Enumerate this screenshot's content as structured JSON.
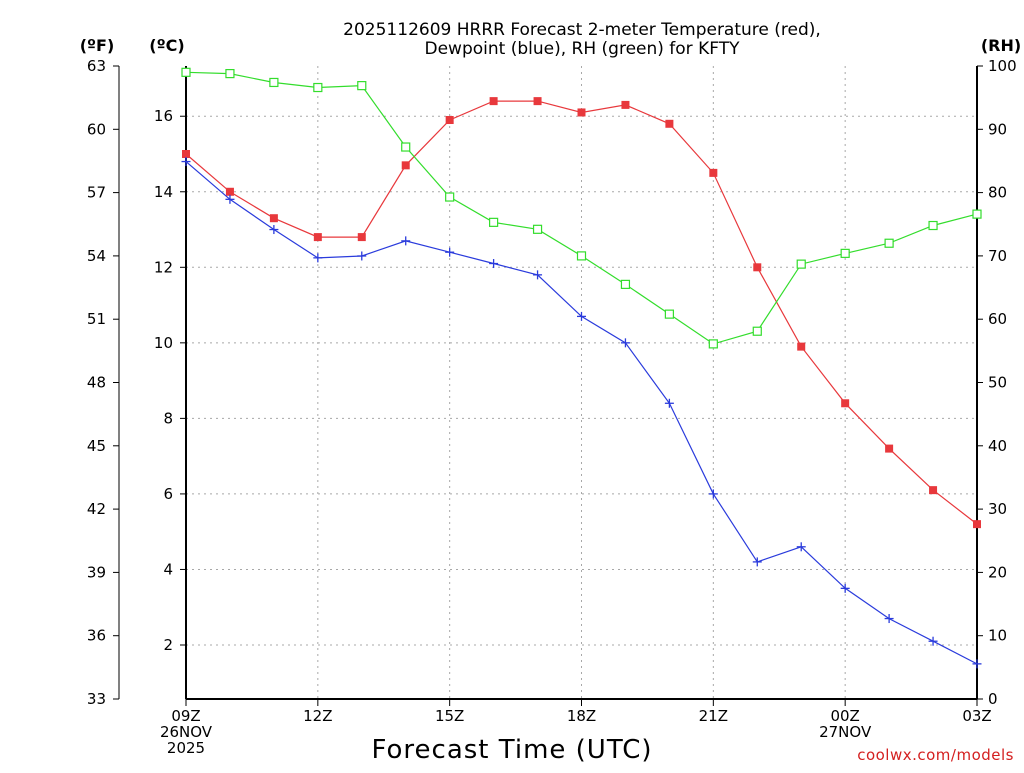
{
  "chart_data": {
    "type": "line",
    "title": [
      "2025112609 HRRR Forecast 2-meter Temperature (red),",
      "Dewpoint (blue), RH (green) for KFTY"
    ],
    "xlabel": "Forecast Time (UTC)",
    "credit": "coolwx.com/models",
    "x_hours": [
      0,
      1,
      2,
      3,
      4,
      5,
      6,
      7,
      8,
      9,
      10,
      11,
      12,
      13,
      14,
      15,
      16,
      17,
      18
    ],
    "x_ticks": [
      {
        "hour": 0,
        "lines": [
          "09Z",
          "26NOV",
          "2025"
        ]
      },
      {
        "hour": 3,
        "lines": [
          "12Z"
        ]
      },
      {
        "hour": 6,
        "lines": [
          "15Z"
        ]
      },
      {
        "hour": 9,
        "lines": [
          "18Z"
        ]
      },
      {
        "hour": 12,
        "lines": [
          "21Z"
        ]
      },
      {
        "hour": 15,
        "lines": [
          "00Z",
          "27NOV"
        ]
      },
      {
        "hour": 18,
        "lines": [
          "03Z"
        ]
      }
    ],
    "xlim": [
      0,
      18
    ],
    "axes": {
      "celsius": {
        "unit_label": "(ºC)",
        "ticks": [
          "2",
          "4",
          "6",
          "8",
          "10",
          "12",
          "14",
          "16"
        ],
        "ylim": [
          0.57,
          17.33
        ]
      },
      "fahrenheit": {
        "unit_label": "(ºF)",
        "ticks": [
          "33",
          "36",
          "39",
          "42",
          "45",
          "48",
          "51",
          "54",
          "57",
          "60",
          "63"
        ],
        "ylim": [
          33,
          63
        ]
      },
      "rh": {
        "unit_label": "(RH)",
        "ticks": [
          "0",
          "10",
          "20",
          "30",
          "40",
          "50",
          "60",
          "70",
          "80",
          "90",
          "100"
        ],
        "ylim": [
          0,
          100
        ]
      }
    },
    "grid": true,
    "series": [
      {
        "name": "Temperature",
        "axis": "celsius",
        "color": "#e8383c",
        "marker": "filled-square",
        "values": [
          15.0,
          14.0,
          13.3,
          12.8,
          12.8,
          14.7,
          15.9,
          16.4,
          16.4,
          16.1,
          16.3,
          15.8,
          14.5,
          12.0,
          9.9,
          8.4,
          7.2,
          6.1,
          5.2
        ]
      },
      {
        "name": "Dewpoint",
        "axis": "celsius",
        "color": "#2a3bdc",
        "marker": "plus",
        "values": [
          14.8,
          13.8,
          13.0,
          12.25,
          12.3,
          12.7,
          12.4,
          12.1,
          11.8,
          10.7,
          10.0,
          8.4,
          6.0,
          4.2,
          4.6,
          3.5,
          2.7,
          2.1,
          1.5
        ]
      },
      {
        "name": "RH",
        "axis": "rh",
        "color": "#33dd2c",
        "marker": "open-square",
        "values": [
          99.0,
          98.8,
          97.4,
          96.6,
          96.9,
          87.2,
          79.3,
          75.3,
          74.2,
          70.0,
          65.5,
          60.8,
          56.1,
          58.1,
          68.7,
          70.4,
          72.0,
          74.8,
          76.6
        ]
      }
    ]
  }
}
